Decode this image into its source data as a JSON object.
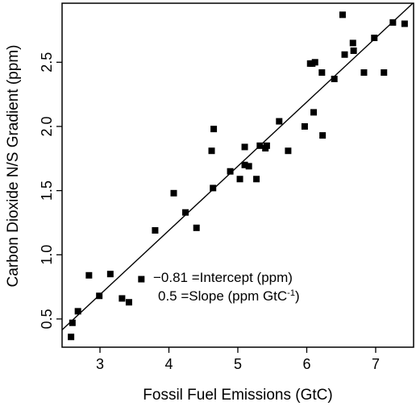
{
  "chart_data": {
    "type": "scatter",
    "title": "",
    "xlabel": "Fossil Fuel Emissions (GtC)",
    "ylabel": "Carbon Dioxide N/S Gradient (ppm)",
    "xlim": [
      2.45,
      7.55
    ],
    "ylim": [
      0.28,
      2.96
    ],
    "xticks": [
      3,
      4,
      5,
      6,
      7
    ],
    "xtick_labels": [
      "3",
      "4",
      "5",
      "6",
      "7"
    ],
    "yticks": [
      0.5,
      1.0,
      1.5,
      2.0,
      2.5
    ],
    "ytick_labels": [
      "0.5",
      "1.0",
      "1.5",
      "2.0",
      "2.5"
    ],
    "grid": false,
    "series": [
      {
        "marker": "square",
        "color": "#000000",
        "points": [
          [
            2.58,
            0.36
          ],
          [
            2.6,
            0.47
          ],
          [
            2.68,
            0.56
          ],
          [
            2.84,
            0.84
          ],
          [
            2.99,
            0.68
          ],
          [
            3.15,
            0.85
          ],
          [
            3.32,
            0.66
          ],
          [
            3.42,
            0.63
          ],
          [
            3.6,
            0.81
          ],
          [
            3.8,
            1.19
          ],
          [
            4.07,
            1.48
          ],
          [
            4.24,
            1.33
          ],
          [
            4.4,
            1.21
          ],
          [
            4.62,
            1.81
          ],
          [
            4.65,
            1.98
          ],
          [
            4.64,
            1.52
          ],
          [
            4.89,
            1.65
          ],
          [
            5.03,
            1.59
          ],
          [
            5.1,
            1.84
          ],
          [
            5.1,
            1.7
          ],
          [
            5.16,
            1.69
          ],
          [
            5.27,
            1.59
          ],
          [
            5.32,
            1.85
          ],
          [
            5.4,
            1.83
          ],
          [
            5.42,
            1.85
          ],
          [
            5.6,
            2.04
          ],
          [
            5.73,
            1.81
          ],
          [
            5.97,
            2.0
          ],
          [
            6.05,
            2.49
          ],
          [
            6.08,
            2.49
          ],
          [
            6.1,
            2.11
          ],
          [
            6.12,
            2.5
          ],
          [
            6.22,
            2.42
          ],
          [
            6.23,
            1.93
          ],
          [
            6.4,
            2.37
          ],
          [
            6.52,
            2.87
          ],
          [
            6.55,
            2.56
          ],
          [
            6.67,
            2.65
          ],
          [
            6.68,
            2.59
          ],
          [
            6.83,
            2.42
          ],
          [
            6.98,
            2.69
          ],
          [
            7.12,
            2.42
          ],
          [
            7.25,
            2.81
          ],
          [
            7.42,
            2.8
          ]
        ]
      }
    ],
    "fit_line": {
      "intercept": -0.81,
      "slope": 0.5
    },
    "annotations": [
      {
        "value": "−0.81",
        "text": " =Intercept (ppm)"
      },
      {
        "value": "0.5",
        "text": " =Slope (ppm GtC",
        "superscript": "-1",
        "suffix": ")"
      }
    ]
  }
}
